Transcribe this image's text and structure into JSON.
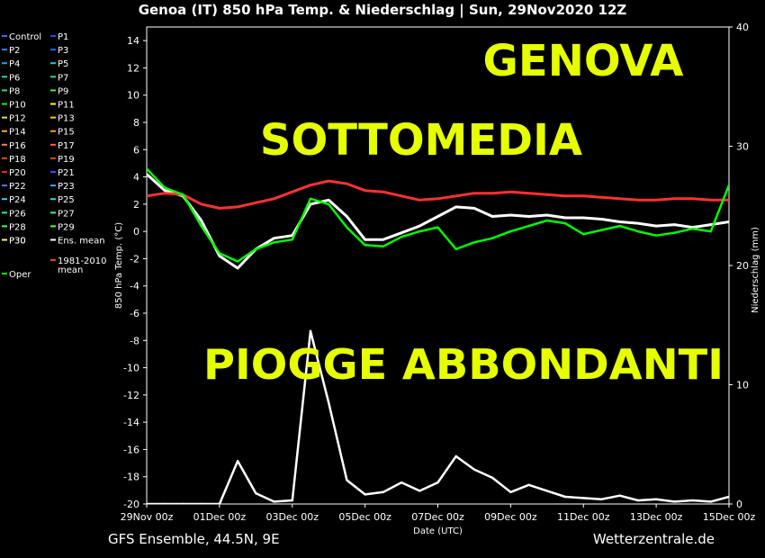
{
  "header": {
    "title": "Genoa  (IT)  850 hPa Temp. & Niederschlag | Sun, 29Nov2020 12Z"
  },
  "footer": {
    "left": "GFS Ensemble, 44.5N, 9E",
    "right": "Wetterzentrale.de"
  },
  "overlay_text": {
    "line1": "GENOVA",
    "line2": "SOTTOMEDIA",
    "line3": "PIOGGE ABBONDANTI",
    "color": "#e6ff00"
  },
  "legend": {
    "items": [
      {
        "label": "Control",
        "color": "#3a6bff"
      },
      {
        "label": "P1",
        "color": "#2a3cff"
      },
      {
        "label": "P2",
        "color": "#3f78ff"
      },
      {
        "label": "P3",
        "color": "#2f5cff"
      },
      {
        "label": "P4",
        "color": "#1fa0ff"
      },
      {
        "label": "P5",
        "color": "#18c8e0"
      },
      {
        "label": "P6",
        "color": "#16d8c0"
      },
      {
        "label": "P7",
        "color": "#14e0a0"
      },
      {
        "label": "P8",
        "color": "#20e870"
      },
      {
        "label": "P9",
        "color": "#40f040"
      },
      {
        "label": "P10",
        "color": "#00ff00"
      },
      {
        "label": "P11",
        "color": "#ffff00"
      },
      {
        "label": "P12",
        "color": "#f4e030"
      },
      {
        "label": "P13",
        "color": "#ffd000"
      },
      {
        "label": "P14",
        "color": "#ffb030"
      },
      {
        "label": "P15",
        "color": "#ff9a20"
      },
      {
        "label": "P16",
        "color": "#ff8040"
      },
      {
        "label": "P17",
        "color": "#ff6030"
      },
      {
        "label": "P18",
        "color": "#ff4020"
      },
      {
        "label": "P19",
        "color": "#e04020"
      },
      {
        "label": "P20",
        "color": "#ff2020"
      },
      {
        "label": "P21",
        "color": "#3050ff"
      },
      {
        "label": "P22",
        "color": "#4a7fff"
      },
      {
        "label": "P23",
        "color": "#2ab0ff"
      },
      {
        "label": "P24",
        "color": "#30d0ff"
      },
      {
        "label": "P25",
        "color": "#20e0c0"
      },
      {
        "label": "P26",
        "color": "#20f0a0"
      },
      {
        "label": "P27",
        "color": "#30ff80"
      },
      {
        "label": "P28",
        "color": "#40ff60"
      },
      {
        "label": "P29",
        "color": "#60ff30"
      },
      {
        "label": "P30",
        "color": "#ffff40"
      },
      {
        "label": "Ens. mean",
        "color": "#ffffff"
      },
      {
        "label": "Oper",
        "color": "#00ff00"
      },
      {
        "label": "1981-2010 mean",
        "color": "#ff3030"
      }
    ]
  },
  "chart_data": {
    "type": "line",
    "title": "Genoa  (IT)  850 hPa Temp. & Niederschlag | Sun, 29Nov2020 12Z",
    "xlabel": "Date (UTC)",
    "ylabel_left": "850 hPa Temp. (°C)",
    "ylabel_right": "Niederschlag (mm)",
    "y_left_range": [
      -20,
      15
    ],
    "y_left_ticks": [
      14,
      12,
      10,
      8,
      6,
      4,
      2,
      0,
      -2,
      -4,
      -6,
      -8,
      -10,
      -12,
      -14,
      -16,
      -18,
      -20
    ],
    "y_right_range": [
      0,
      40
    ],
    "y_right_ticks": [
      0,
      10,
      20,
      30,
      40
    ],
    "x_range_days": [
      0,
      16
    ],
    "x_ticks": [
      "29Nov 00z",
      "01Dec 00z",
      "03Dec 00z",
      "05Dec 00z",
      "07Dec 00z",
      "09Dec 00z",
      "11Dec 00z",
      "13Dec 00z",
      "15Dec 00z"
    ],
    "grid": false,
    "series": [
      {
        "name": "Ens. mean",
        "axis": "left",
        "color": "#ffffff",
        "x": [
          0.0,
          0.5,
          1.0,
          1.5,
          2.0,
          2.5,
          3.0,
          3.5,
          4.0,
          4.5,
          5.0,
          5.5,
          6.0,
          6.5,
          7.0,
          7.5,
          8.0,
          8.5,
          9.0,
          9.5,
          10.0,
          10.5,
          11.0,
          11.5,
          12.0,
          12.5,
          13.0,
          13.5,
          14.0,
          14.5,
          15.0,
          15.5,
          16.0
        ],
        "y": [
          4.2,
          3.0,
          2.6,
          0.8,
          -1.8,
          -2.7,
          -1.3,
          -0.5,
          -0.3,
          2.0,
          2.3,
          1.1,
          -0.6,
          -0.6,
          -0.1,
          0.4,
          1.1,
          1.8,
          1.7,
          1.1,
          1.2,
          1.1,
          1.2,
          1.0,
          1.0,
          0.9,
          0.7,
          0.6,
          0.4,
          0.5,
          0.3,
          0.5,
          0.7
        ]
      },
      {
        "name": "1981-2010 mean",
        "axis": "left",
        "color": "#ff3030",
        "x": [
          0.0,
          0.5,
          1.0,
          1.5,
          2.0,
          2.5,
          3.0,
          3.5,
          4.0,
          4.5,
          5.0,
          5.5,
          6.0,
          6.5,
          7.0,
          7.5,
          8.0,
          8.5,
          9.0,
          9.5,
          10.0,
          10.5,
          11.0,
          11.5,
          12.0,
          12.5,
          13.0,
          13.5,
          14.0,
          14.5,
          15.0,
          15.5,
          16.0
        ],
        "y": [
          2.6,
          2.8,
          2.7,
          2.0,
          1.7,
          1.8,
          2.1,
          2.4,
          2.9,
          3.4,
          3.7,
          3.5,
          3.0,
          2.9,
          2.6,
          2.3,
          2.4,
          2.6,
          2.8,
          2.8,
          2.9,
          2.8,
          2.7,
          2.6,
          2.6,
          2.5,
          2.4,
          2.3,
          2.3,
          2.4,
          2.4,
          2.3,
          2.3
        ]
      },
      {
        "name": "Oper",
        "axis": "left",
        "color": "#00ff00",
        "x": [
          0.0,
          0.5,
          1.0,
          1.5,
          2.0,
          2.5,
          3.0,
          3.5,
          4.0,
          4.5,
          5.0,
          5.5,
          6.0,
          6.5,
          7.0,
          7.5,
          8.0,
          8.5,
          9.0,
          9.5,
          10.0,
          10.5,
          11.0,
          11.5,
          12.0,
          12.5,
          13.0,
          13.5,
          14.0,
          14.5,
          15.0,
          15.5,
          16.0
        ],
        "y": [
          4.6,
          3.2,
          2.7,
          0.4,
          -1.6,
          -2.2,
          -1.3,
          -0.8,
          -0.6,
          2.4,
          2.0,
          0.3,
          -1.0,
          -1.1,
          -0.4,
          0.0,
          0.3,
          -1.3,
          -0.8,
          -0.5,
          0.0,
          0.4,
          0.8,
          0.6,
          -0.2,
          0.1,
          0.4,
          0.0,
          -0.3,
          -0.1,
          0.2,
          0.0,
          3.4
        ]
      },
      {
        "name": "Ens. mean precipitation",
        "axis": "right",
        "color": "#ffffff",
        "x": [
          0.0,
          0.5,
          1.0,
          1.5,
          2.0,
          2.5,
          3.0,
          3.5,
          4.0,
          4.5,
          5.0,
          5.5,
          6.0,
          6.5,
          7.0,
          7.5,
          8.0,
          8.5,
          9.0,
          9.5,
          10.0,
          10.5,
          11.0,
          11.5,
          12.0,
          12.5,
          13.0,
          13.5,
          14.0,
          14.5,
          15.0,
          15.5,
          16.0
        ],
        "y": [
          0,
          0,
          0,
          0,
          0,
          3.6,
          0.9,
          0.2,
          0.3,
          14.5,
          8.5,
          2.0,
          0.8,
          1.0,
          1.8,
          1.1,
          1.8,
          4.0,
          2.9,
          2.2,
          1.0,
          1.6,
          1.1,
          0.6,
          0.5,
          0.4,
          0.7,
          0.3,
          0.4,
          0.2,
          0.3,
          0.2,
          0.6
        ]
      }
    ]
  }
}
